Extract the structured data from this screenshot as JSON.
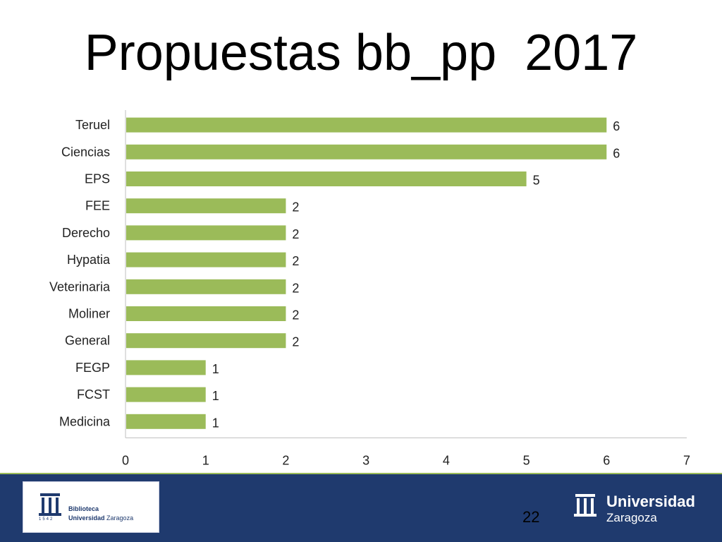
{
  "slide": {
    "title": "Propuestas bb_pp  2017",
    "page_number": "22"
  },
  "logos": {
    "left_line1": "Biblioteca",
    "left_line2_bold": "Universidad",
    "left_line2_rest": "Zaragoza",
    "right_line1": "Universidad",
    "right_line2": "Zaragoza",
    "crest_year": "1542"
  },
  "colors": {
    "bar": "#9bbb59",
    "footer": "#1f3a6e",
    "axis": "#bfbfbf"
  },
  "chart_data": {
    "type": "bar",
    "orientation": "horizontal",
    "categories": [
      "Teruel",
      "Ciencias",
      "EPS",
      "FEE",
      "Derecho",
      "Hypatia",
      "Veterinaria",
      "Moliner",
      "General",
      "FEGP",
      "FCST",
      "Medicina"
    ],
    "values": [
      6,
      6,
      5,
      2,
      2,
      2,
      2,
      2,
      2,
      1,
      1,
      1
    ],
    "xlim": [
      0,
      7
    ],
    "xticks": [
      0,
      1,
      2,
      3,
      4,
      5,
      6,
      7
    ],
    "data_labels": true,
    "grid": false,
    "legend": "none"
  }
}
